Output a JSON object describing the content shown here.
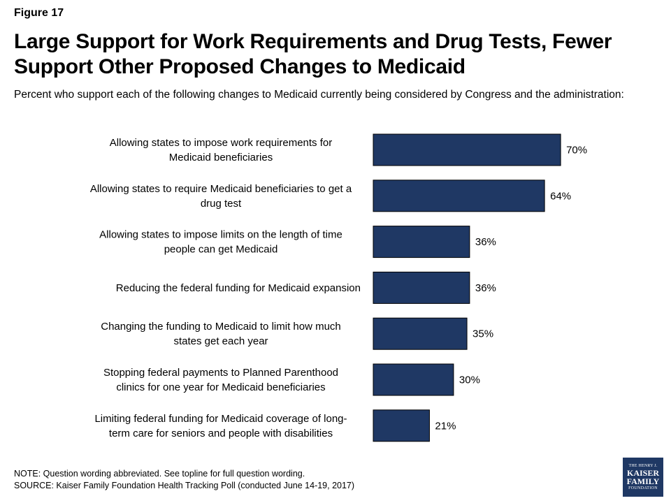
{
  "figure_label": "Figure 17",
  "chart_data": {
    "type": "bar",
    "orientation": "horizontal",
    "title": "Large Support for Work Requirements and Drug Tests, Fewer Support Other Proposed Changes to Medicaid",
    "subtitle": "Percent who support each of the following changes to Medicaid currently being considered by Congress and the administration:",
    "categories": [
      [
        "Allowing states to impose work requirements for",
        "Medicaid beneficiaries"
      ],
      [
        "Allowing states to require Medicaid beneficiaries to get a",
        "drug test"
      ],
      [
        "Allowing states to impose limits on the length of time",
        "people can get Medicaid"
      ],
      [
        "Reducing the federal funding for Medicaid expansion"
      ],
      [
        "Changing the funding to Medicaid to limit how much",
        "states get each year"
      ],
      [
        "Stopping federal payments to Planned Parenthood",
        "clinics for one year for Medicaid beneficiaries"
      ],
      [
        "Limiting federal funding for Medicaid coverage of long-",
        "term care for seniors and people with disabilities"
      ]
    ],
    "values": [
      70,
      64,
      36,
      36,
      35,
      30,
      21
    ],
    "value_labels": [
      "70%",
      "64%",
      "36%",
      "36%",
      "35%",
      "30%",
      "21%"
    ],
    "xlim": [
      0,
      100
    ],
    "grid": false,
    "legend": "none",
    "bar_color": "#1f3864"
  },
  "notes": {
    "note": "NOTE: Question wording abbreviated. See topline for full question wording.",
    "source": "SOURCE: Kaiser Family Foundation Health Tracking Poll (conducted June 14-19, 2017)"
  },
  "logo": {
    "line1": "THE HENRY J.",
    "line2": "KAISER",
    "line3": "FAMILY",
    "line4": "FOUNDATION"
  }
}
